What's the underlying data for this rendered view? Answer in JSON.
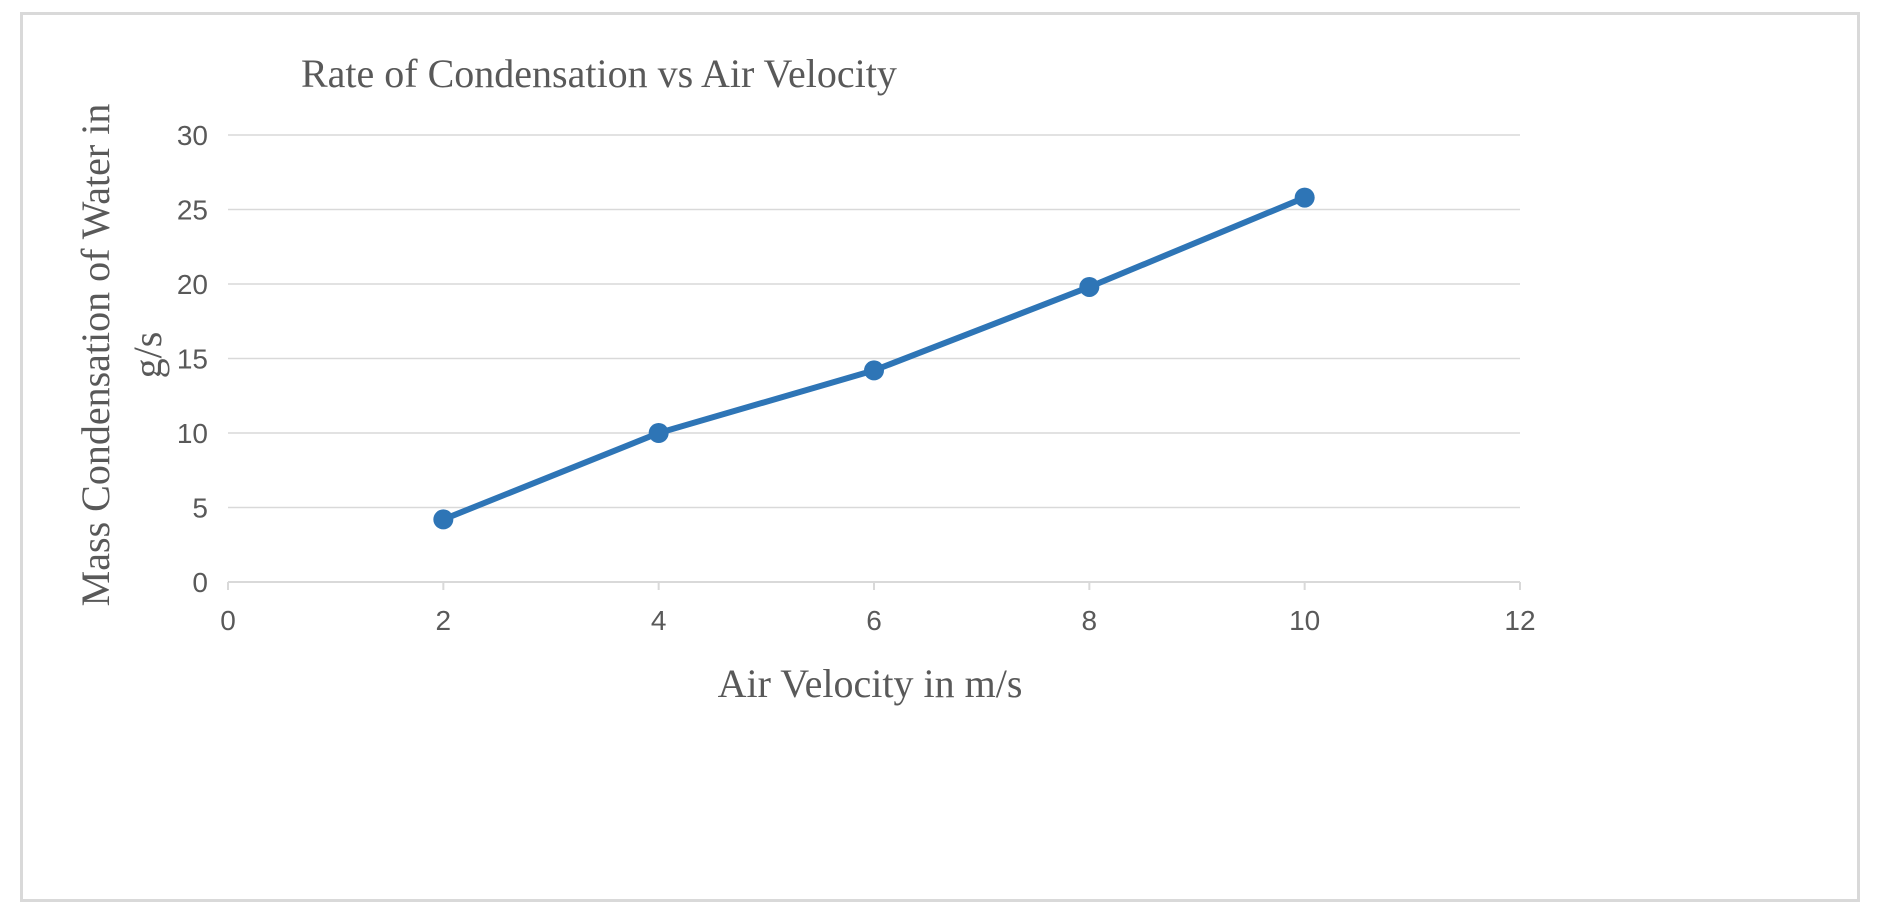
{
  "chart_data": {
    "type": "line",
    "title": "Rate of Condensation vs Air Velocity",
    "xlabel": "Air Velocity in m/s",
    "ylabel_lines": [
      "Mass Condensation of Water in",
      "g/s"
    ],
    "xlim": [
      0,
      12
    ],
    "ylim": [
      0,
      30
    ],
    "x_ticks": [
      "0",
      "2",
      "4",
      "6",
      "8",
      "10",
      "12"
    ],
    "y_ticks": [
      "0",
      "5",
      "10",
      "15",
      "20",
      "25",
      "30"
    ],
    "grid": "horizontal",
    "legend": "none",
    "series": [
      {
        "name": "Mass Condensation",
        "color": "#2e75b6",
        "x": [
          2,
          4,
          6,
          8,
          10
        ],
        "y": [
          4.2,
          10.0,
          14.2,
          19.8,
          25.8
        ]
      }
    ]
  }
}
